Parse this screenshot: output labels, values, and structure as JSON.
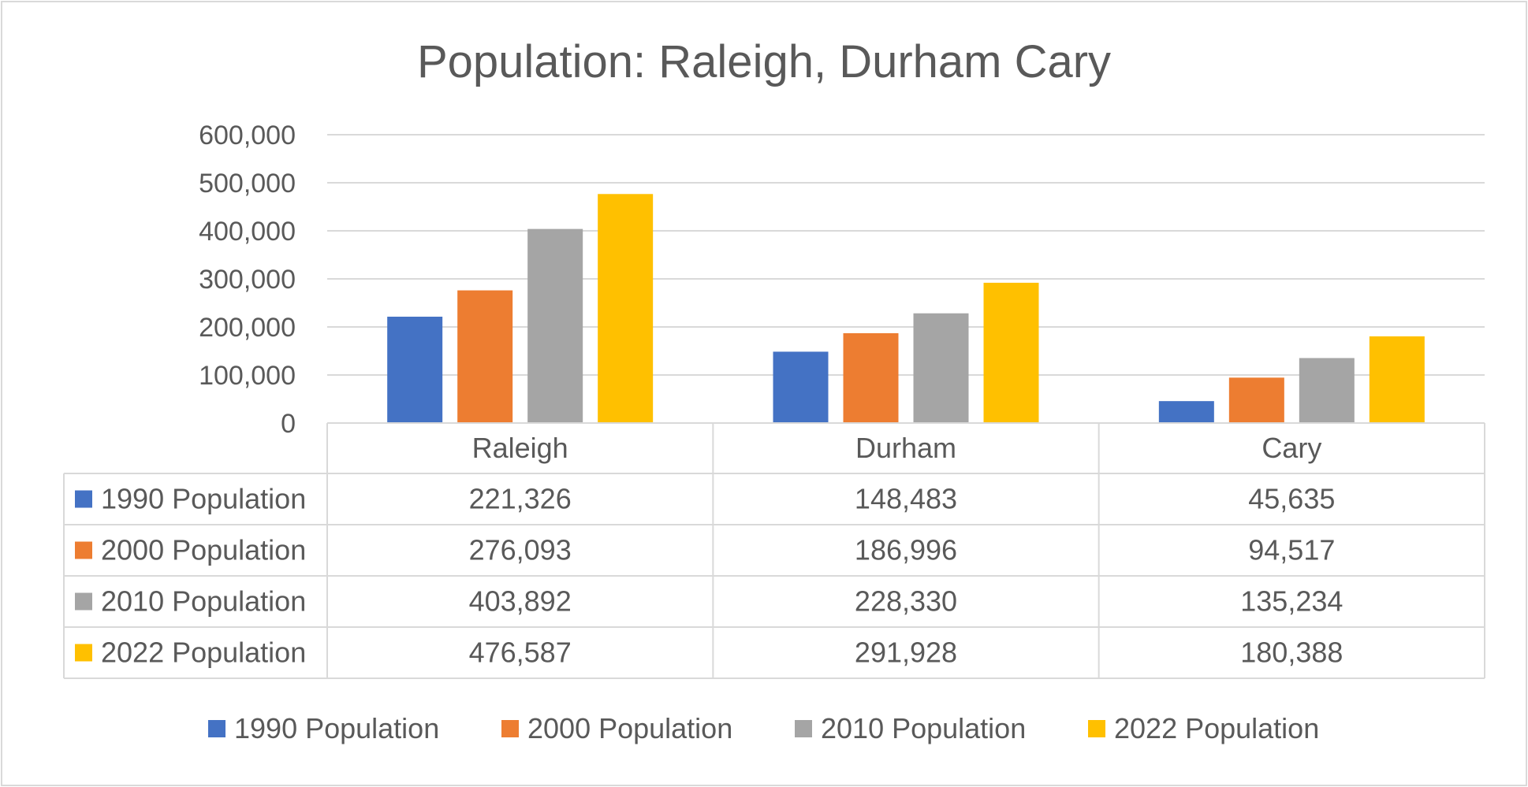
{
  "chart_data": {
    "type": "bar",
    "title": "Population: Raleigh, Durham Cary",
    "xlabel": "",
    "ylabel": "",
    "ylim": [
      0,
      600000
    ],
    "y_ticks": [
      0,
      100000,
      200000,
      300000,
      400000,
      500000,
      600000
    ],
    "y_tick_labels": [
      "0",
      "100,000",
      "200,000",
      "300,000",
      "400,000",
      "500,000",
      "600,000"
    ],
    "grid": true,
    "legend_position": "bottom",
    "categories": [
      "Raleigh",
      "Durham",
      "Cary"
    ],
    "series": [
      {
        "name": "1990 Population",
        "color": "#4472c4",
        "values": [
          221326,
          148483,
          45635
        ],
        "labels": [
          "221,326",
          "148,483",
          "45,635"
        ]
      },
      {
        "name": "2000 Population",
        "color": "#ed7d31",
        "values": [
          276093,
          186996,
          94517
        ],
        "labels": [
          "276,093",
          "186,996",
          "94,517"
        ]
      },
      {
        "name": "2010 Population",
        "color": "#a5a5a5",
        "values": [
          403892,
          228330,
          135234
        ],
        "labels": [
          "403,892",
          "228,330",
          "135,234"
        ]
      },
      {
        "name": "2022 Population",
        "color": "#ffc000",
        "values": [
          476587,
          291928,
          180388
        ],
        "labels": [
          "476,587",
          "291,928",
          "180,388"
        ]
      }
    ]
  }
}
